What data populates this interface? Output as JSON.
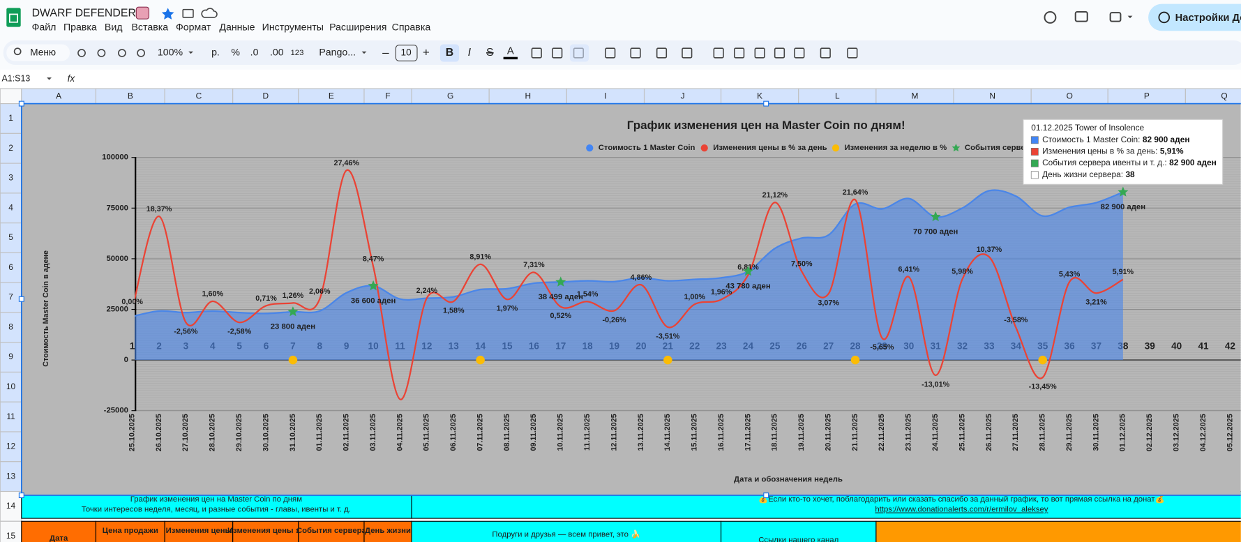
{
  "app": {
    "title": "DWARF DEFENDERS!",
    "menu": [
      "Файл",
      "Правка",
      "Вид",
      "Вставка",
      "Формат",
      "Данные",
      "Инструменты",
      "Расширения",
      "Справка"
    ],
    "share_button": "Настройки Доступа"
  },
  "toolbar": {
    "search": "Меню",
    "zoom": "100%",
    "currency": "р.",
    "percent": "%",
    "decimal_less": ".0",
    "decimal_more": ".00",
    "number_format": "123",
    "font": "Pango...",
    "font_size": "10"
  },
  "formula_bar": {
    "name_box": "A1:S13",
    "fx": "fx"
  },
  "columns": [
    "A",
    "B",
    "C",
    "D",
    "E",
    "F",
    "G",
    "H",
    "I",
    "J",
    "K",
    "L",
    "M",
    "N",
    "O",
    "P",
    "Q"
  ],
  "rows": [
    1,
    2,
    3,
    4,
    5,
    6,
    7,
    8,
    9,
    10,
    11,
    12,
    13,
    14,
    15
  ],
  "chart_data": {
    "type": "combo",
    "title": "График изменения цен на Master Coin по дням!",
    "x_label": "Дата и обозначения недель",
    "y_label": "Стоимость Master Coin в адене",
    "categories": [
      "25.10.2025",
      "26.10.2025",
      "27.10.2025",
      "28.10.2025",
      "29.10.2025",
      "30.10.2025",
      "31.10.2025",
      "01.11.2025",
      "02.11.2025",
      "03.11.2025",
      "04.11.2025",
      "05.11.2025",
      "06.11.2025",
      "07.11.2025",
      "08.11.2025",
      "09.11.2025",
      "10.11.2025",
      "11.11.2025",
      "12.11.2025",
      "13.11.2025",
      "14.11.2025",
      "15.11.2025",
      "16.11.2025",
      "17.11.2025",
      "18.11.2025",
      "19.11.2025",
      "20.11.2025",
      "21.11.2025",
      "22.11.2025",
      "23.11.2025",
      "24.11.2025",
      "25.11.2025",
      "26.11.2025",
      "27.11.2025",
      "28.11.2025",
      "29.11.2025",
      "30.11.2025",
      "01.12.2025",
      "02.12.2025",
      "03.12.2025",
      "04.12.2025",
      "05.12.2025"
    ],
    "day_labels": [
      1,
      2,
      3,
      4,
      5,
      6,
      7,
      8,
      9,
      10,
      11,
      12,
      13,
      14,
      15,
      16,
      17,
      18,
      19,
      20,
      21,
      22,
      23,
      24,
      25,
      26,
      27,
      28,
      29,
      30,
      31,
      32,
      33,
      34,
      35,
      36,
      37,
      38,
      39,
      40,
      41,
      42
    ],
    "ylim": [
      -25000,
      100000
    ],
    "yticks": [
      -25000,
      0,
      25000,
      50000,
      75000,
      100000
    ],
    "y2lim": [
      -20,
      30
    ],
    "grid": true,
    "series": [
      {
        "name": "Стоимость 1 Master Coin",
        "type": "area",
        "color": "#4a86e8",
        "values": [
          21500,
          24200,
          23400,
          24200,
          23400,
          23000,
          23800,
          24200,
          33200,
          36600,
          30100,
          30500,
          31200,
          34800,
          35200,
          37900,
          38499,
          39100,
          38700,
          40600,
          39100,
          39800,
          40600,
          43780,
          55100,
          60200,
          61700,
          77000,
          74600,
          79700,
          70700,
          75000,
          83600,
          80900,
          71100,
          75400,
          77700,
          82900,
          null,
          null,
          null,
          null
        ]
      },
      {
        "name": "Изменения цены в % за день",
        "type": "line",
        "axis": "y2",
        "color": "#ea4335",
        "values": [
          0,
          18.37,
          -2.56,
          1.6,
          -2.58,
          0.71,
          1.26,
          2.06,
          27.46,
          8.47,
          -17.76,
          2.24,
          1.58,
          8.91,
          1.97,
          7.31,
          0.52,
          1.54,
          -0.26,
          4.86,
          -3.51,
          1.0,
          1.96,
          6.81,
          21.12,
          7.5,
          3.07,
          21.64,
          -5.65,
          6.41,
          -13.01,
          5.98,
          10.37,
          -3.58,
          -13.45,
          5.43,
          3.21,
          5.91,
          null,
          null,
          null,
          null
        ],
        "value_labels": [
          "0,00%",
          "18,37%",
          "-2,56%",
          "1,60%",
          "-2,58%",
          "0,71%",
          "1,26%",
          "2,06%",
          "27,46%",
          "8,47%",
          null,
          "2,24%",
          "1,58%",
          "8,91%",
          "1,97%",
          "7,31%",
          "0,52%",
          "1,54%",
          "-0,26%",
          "4,86%",
          "-3,51%",
          "1,00%",
          "1,96%",
          "6,81%",
          "21,12%",
          "7,50%",
          "3,07%",
          "21,64%",
          "-5,65%",
          "6,41%",
          "-13,01%",
          "5,98%",
          "10,37%",
          "-3,58%",
          "-13,45%",
          "5,43%",
          "3,21%",
          "5,91%",
          null,
          null,
          null,
          null
        ]
      },
      {
        "name": "Изменения за неделю в %",
        "type": "scatter",
        "marker": "circle",
        "color": "#fbbc04",
        "values": [
          null,
          null,
          null,
          null,
          null,
          null,
          0,
          null,
          null,
          null,
          null,
          null,
          null,
          0,
          null,
          null,
          null,
          null,
          null,
          null,
          0,
          null,
          null,
          null,
          null,
          null,
          null,
          0,
          null,
          null,
          null,
          null,
          null,
          null,
          0,
          null,
          null,
          null,
          null,
          null,
          null,
          null
        ]
      },
      {
        "name": "События сервера ивенты и т. д.",
        "type": "scatter",
        "marker": "star",
        "color": "#34a853",
        "values": [
          null,
          null,
          null,
          null,
          null,
          null,
          23800,
          null,
          null,
          36600,
          null,
          null,
          null,
          null,
          null,
          null,
          38499,
          null,
          null,
          null,
          null,
          null,
          null,
          43780,
          null,
          null,
          null,
          null,
          null,
          null,
          70700,
          null,
          null,
          null,
          null,
          null,
          null,
          82900,
          null,
          null,
          null,
          null
        ],
        "value_labels": [
          null,
          null,
          null,
          null,
          null,
          null,
          "23 800 аден",
          null,
          null,
          "36 600 аден",
          null,
          null,
          null,
          null,
          null,
          null,
          "38 499 аден",
          null,
          null,
          null,
          null,
          null,
          null,
          "43 780 аден",
          null,
          null,
          null,
          null,
          null,
          null,
          "70 700 аден",
          null,
          null,
          null,
          null,
          null,
          null,
          "82 900 аден",
          null,
          null,
          null,
          null
        ]
      }
    ]
  },
  "tooltip": {
    "title": "01.12.2025 Tower of Insolence",
    "rows": [
      {
        "label": "Стоимость 1 Master Coin:",
        "value": "82 900 аден",
        "color": "#4285f4"
      },
      {
        "label": "Изменения цены в % за день:",
        "value": "5,91%",
        "color": "#ea4335"
      },
      {
        "label": "События сервера ивенты и т. д.:",
        "value": "82 900 аден",
        "color": "#34a853"
      },
      {
        "label": "День жизни сервера:",
        "value": "38",
        "color": "#ffffff"
      }
    ]
  },
  "cells": {
    "row14_left": [
      "График изменения цен на Master Coin по дням",
      "Точки интересов неделя, месяц, и разные события - главы, ивенты и т. д."
    ],
    "row14_right": "💰Если кто-то хочет, поблагодарить или сказать спасибо за данный график, то вот прямая ссылка на донат💰",
    "row14_link": "https://www.donationalerts.com/r/ermilov_aleksey",
    "row15": [
      "Дата",
      "Цена продажи",
      "Изменения цены",
      "Изменения цены за",
      "События сервера",
      "День жизни",
      "Подруги и друзья — всем привет, это 🍌",
      "Ссылки нашего канал"
    ]
  }
}
